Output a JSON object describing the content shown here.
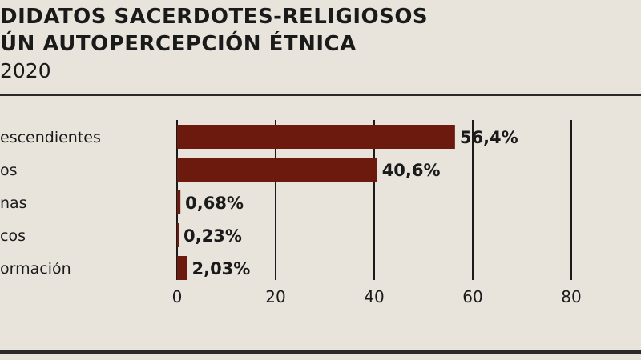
{
  "header": {
    "title_line1": "DIDATOS SACERDOTES-RELIGIOSOS",
    "title_line2": "ÚN AUTOPERCEPCIÓN ÉTNICA",
    "subtitle": "2020"
  },
  "colors": {
    "bar": "#6b1a0d",
    "background": "#e8e4dc",
    "text": "#1a1a1a",
    "grid": "#1a1a1a"
  },
  "chart_data": {
    "type": "bar",
    "orientation": "horizontal",
    "categories": [
      "escendientes",
      "os",
      "nas",
      "cos",
      "ormación"
    ],
    "values": [
      56.4,
      40.6,
      0.68,
      0.23,
      2.03
    ],
    "value_labels": [
      "56,4%",
      "40,6%",
      "0,68%",
      "0,23%",
      "2,03%"
    ],
    "xlim": [
      0,
      80
    ],
    "xticks": [
      0,
      20,
      40,
      60,
      80
    ],
    "xtick_labels": [
      "0",
      "20",
      "40",
      "60",
      "80"
    ],
    "grid": true
  }
}
